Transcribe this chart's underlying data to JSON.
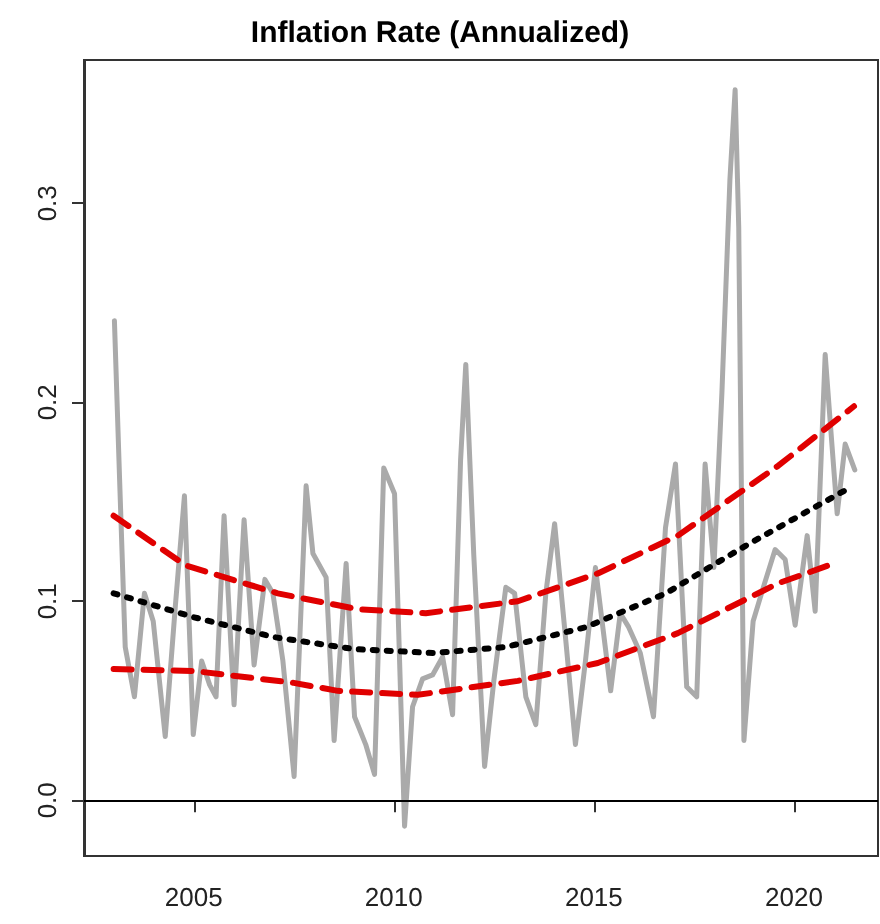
{
  "chart_data": {
    "type": "line",
    "title": "Inflation Rate (Annualized)",
    "marker": "none",
    "grid": false,
    "xlim": [
      2002.26,
      2022.1
    ],
    "xticks": [
      2005,
      2010,
      2015,
      2020
    ],
    "ylim": [
      -0.028,
      0.372
    ],
    "yticks": [
      {
        "value": 0,
        "label": "0.0"
      },
      0.1,
      0.2,
      0.3
    ],
    "ref_lines": [
      {
        "axis": "y",
        "value": 0,
        "color": "#000000",
        "line_style": "solid"
      }
    ],
    "series": [
      {
        "color": "#aaaaaa",
        "line_style": "solid",
        "x": [
          2003.02,
          2003.15,
          2003.29,
          2003.52,
          2003.77,
          2003.99,
          2004.29,
          2004.54,
          2004.77,
          2004.99,
          2005.2,
          2005.4,
          2005.56,
          2005.76,
          2006.01,
          2006.26,
          2006.51,
          2006.78,
          2006.98,
          2007.23,
          2007.51,
          2007.81,
          2007.98,
          2008.31,
          2008.51,
          2008.81,
          2009.02,
          2009.3,
          2009.52,
          2009.75,
          2010.02,
          2010.27,
          2010.47,
          2010.72,
          2010.97,
          2011.22,
          2011.47,
          2011.67,
          2011.8,
          2012.0,
          2012.27,
          2012.5,
          2012.8,
          2013.02,
          2013.3,
          2013.55,
          2013.8,
          2014.02,
          2014.3,
          2014.54,
          2014.79,
          2015.04,
          2015.42,
          2015.66,
          2015.87,
          2016.16,
          2016.49,
          2016.79,
          2017.04,
          2017.32,
          2017.57,
          2017.78,
          2018.0,
          2018.2,
          2018.4,
          2018.53,
          2018.62,
          2018.75,
          2018.98,
          2019.25,
          2019.53,
          2019.78,
          2020.03,
          2020.33,
          2020.53,
          2020.78,
          2020.91,
          2021.08,
          2021.28,
          2021.52
        ],
        "values": [
          0.241,
          0.161,
          0.077,
          0.052,
          0.104,
          0.09,
          0.032,
          0.097,
          0.153,
          0.033,
          0.07,
          0.058,
          0.052,
          0.143,
          0.048,
          0.141,
          0.068,
          0.111,
          0.104,
          0.07,
          0.012,
          0.158,
          0.124,
          0.112,
          0.03,
          0.119,
          0.042,
          0.028,
          0.013,
          0.167,
          0.154,
          -0.013,
          0.047,
          0.061,
          0.063,
          0.072,
          0.043,
          0.171,
          0.219,
          0.123,
          0.017,
          0.06,
          0.107,
          0.104,
          0.052,
          0.038,
          0.104,
          0.139,
          0.08,
          0.028,
          0.07,
          0.117,
          0.055,
          0.094,
          0.087,
          0.074,
          0.042,
          0.137,
          0.169,
          0.057,
          0.052,
          0.169,
          0.117,
          0.205,
          0.312,
          0.357,
          0.288,
          0.03,
          0.09,
          0.108,
          0.126,
          0.121,
          0.088,
          0.133,
          0.095,
          0.224,
          0.189,
          0.144,
          0.179,
          0.166
        ]
      },
      {
        "color": "#000000",
        "line_style": "dotted",
        "x": [
          2003.0,
          2005,
          2007,
          2009,
          2011,
          2012.8,
          2014.8,
          2016.8,
          2018.8,
          2021.3
        ],
        "values": [
          0.104,
          0.092,
          0.082,
          0.076,
          0.074,
          0.077,
          0.087,
          0.104,
          0.128,
          0.156
        ]
      },
      {
        "color": "#e00000",
        "line_style": "dashed",
        "x": [
          2003.0,
          2004.8,
          2007.1,
          2009.1,
          2010.8,
          2013.1,
          2015.1,
          2017.1,
          2019.6,
          2021.5
        ],
        "values": [
          0.143,
          0.118,
          0.104,
          0.096,
          0.094,
          0.1,
          0.114,
          0.133,
          0.168,
          0.198
        ]
      },
      {
        "color": "#e00000",
        "line_style": "dashed",
        "x": [
          2003.0,
          2005.0,
          2007.5,
          2008.6,
          2010.6,
          2013.1,
          2015.1,
          2017.1,
          2019.6,
          2021.0
        ],
        "values": [
          0.066,
          0.065,
          0.059,
          0.055,
          0.053,
          0.06,
          0.069,
          0.084,
          0.109,
          0.119
        ]
      }
    ]
  }
}
